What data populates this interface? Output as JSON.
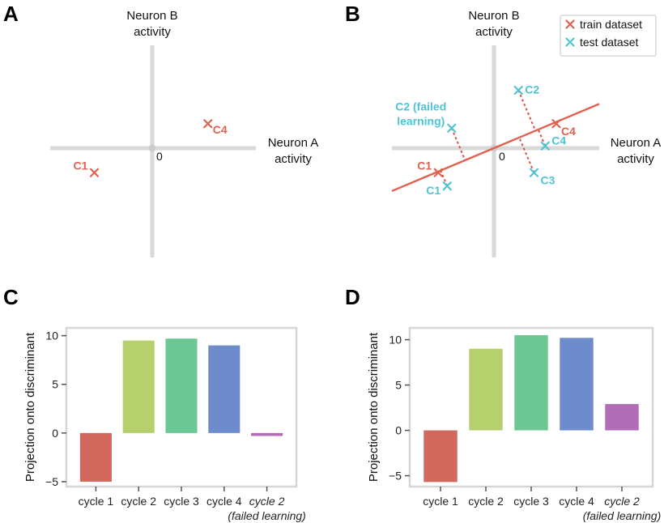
{
  "chart_data": [
    {
      "panel": "A",
      "type": "scatter",
      "xlabel": [
        "Neuron A",
        "activity"
      ],
      "ylabel": [
        "Neuron B",
        "activity"
      ],
      "origin_label": "0",
      "points": [
        {
          "label": "C1",
          "x": -1.3,
          "y": -0.55,
          "set": "train"
        },
        {
          "label": "C4",
          "x": 1.25,
          "y": 0.55,
          "set": "train"
        }
      ]
    },
    {
      "panel": "B",
      "type": "scatter",
      "xlabel": [
        "Neuron A",
        "activity"
      ],
      "ylabel": [
        "Neuron B",
        "activity"
      ],
      "origin_label": "0",
      "legend": [
        {
          "name": "train dataset",
          "color": "#e0614f"
        },
        {
          "name": "test dataset",
          "color": "#4ec4d4"
        }
      ],
      "discriminant_slope": 0.42,
      "points": [
        {
          "label": "C1",
          "x": -1.25,
          "y": -0.55,
          "set": "train"
        },
        {
          "label": "C4",
          "x": 1.4,
          "y": 0.55,
          "set": "train"
        },
        {
          "label": "C1",
          "x": -1.05,
          "y": -0.85,
          "set": "test"
        },
        {
          "label": "C2",
          "x": 0.55,
          "y": 1.3,
          "set": "test"
        },
        {
          "label": "C3",
          "x": 0.9,
          "y": -0.55,
          "set": "test"
        },
        {
          "label": "C4",
          "x": 1.15,
          "y": 0.05,
          "set": "test"
        },
        {
          "label": "C2 (failed learning)",
          "label_lines": [
            "C2 (failed",
            "learning)"
          ],
          "x": -0.95,
          "y": 0.45,
          "set": "test"
        }
      ]
    },
    {
      "panel": "C",
      "type": "bar",
      "ylabel": "Projection onto discriminant",
      "ylim": [
        -5.5,
        10.8
      ],
      "yticks": [
        -5,
        0,
        5,
        10
      ],
      "ytick_labels": [
        "−5",
        "0",
        "5",
        "10"
      ],
      "categories": [
        [
          "cycle 1"
        ],
        [
          "cycle 2"
        ],
        [
          "cycle 3"
        ],
        [
          "cycle 4"
        ],
        [
          "cycle 2",
          "(failed learning)"
        ]
      ],
      "italic_last": true,
      "values": [
        -5.0,
        9.5,
        9.7,
        9.0,
        -0.3
      ],
      "colors": [
        "#d2675d",
        "#b5d06c",
        "#6cc795",
        "#6e8bcc",
        "#b06cb4"
      ]
    },
    {
      "panel": "D",
      "type": "bar",
      "ylabel": "Projection onto discriminant",
      "ylim": [
        -6.2,
        11.3
      ],
      "yticks": [
        -5,
        0,
        5,
        10
      ],
      "ytick_labels": [
        "−5",
        "0",
        "5",
        "10"
      ],
      "categories": [
        [
          "cycle 1"
        ],
        [
          "cycle 2"
        ],
        [
          "cycle 3"
        ],
        [
          "cycle 4"
        ],
        [
          "cycle 2",
          "(failed learning)"
        ]
      ],
      "italic_last": true,
      "values": [
        -5.7,
        9.0,
        10.5,
        10.2,
        2.9
      ],
      "colors": [
        "#d2675d",
        "#b5d06c",
        "#6cc795",
        "#6e8bcc",
        "#b06cb4"
      ]
    }
  ]
}
